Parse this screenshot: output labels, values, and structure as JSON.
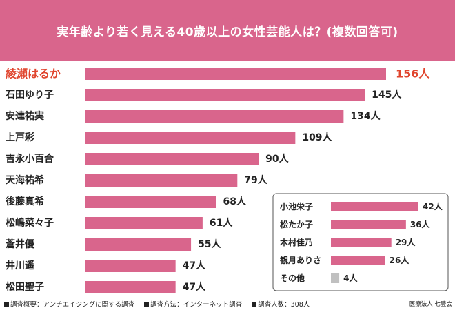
{
  "title": "実年齢より若く見える40歳以上の女性芸能人は？(複数回答可)",
  "colors": {
    "header": "#d9658c",
    "bar": "#d9658c",
    "highlight_text": "#e0452e",
    "other_bar": "#c0c0c0"
  },
  "chart_data": [
    {
      "type": "bar",
      "orientation": "horizontal",
      "unit": "人",
      "highlight_index": 0,
      "xlim": [
        0,
        165
      ],
      "categories": [
        "綾瀬はるか",
        "石田ゆり子",
        "安達祐実",
        "上戸彩",
        "吉永小百合",
        "天海祐希",
        "後藤真希",
        "松嶋菜々子",
        "蒼井優",
        "井川遥",
        "松田聖子"
      ],
      "values": [
        156,
        145,
        134,
        109,
        90,
        79,
        68,
        61,
        55,
        47,
        47
      ],
      "value_labels": [
        "156人",
        "145人",
        "134人",
        "109人",
        "90人",
        "79人",
        "68人",
        "61人",
        "55人",
        "47人",
        "47人"
      ]
    },
    {
      "type": "bar",
      "orientation": "horizontal",
      "unit": "人",
      "xlim": [
        0,
        45
      ],
      "categories": [
        "小池栄子",
        "松たか子",
        "木村佳乃",
        "観月ありさ",
        "その他"
      ],
      "values": [
        42,
        36,
        29,
        26,
        4
      ],
      "value_labels": [
        "42人",
        "36人",
        "29人",
        "26人",
        "4人"
      ]
    }
  ],
  "footer": {
    "items": [
      "調査概要：アンチエイジングに関する調査",
      "調査方法：インターネット調査",
      "調査人数：308人"
    ],
    "source": "医療法人 七豊会"
  }
}
